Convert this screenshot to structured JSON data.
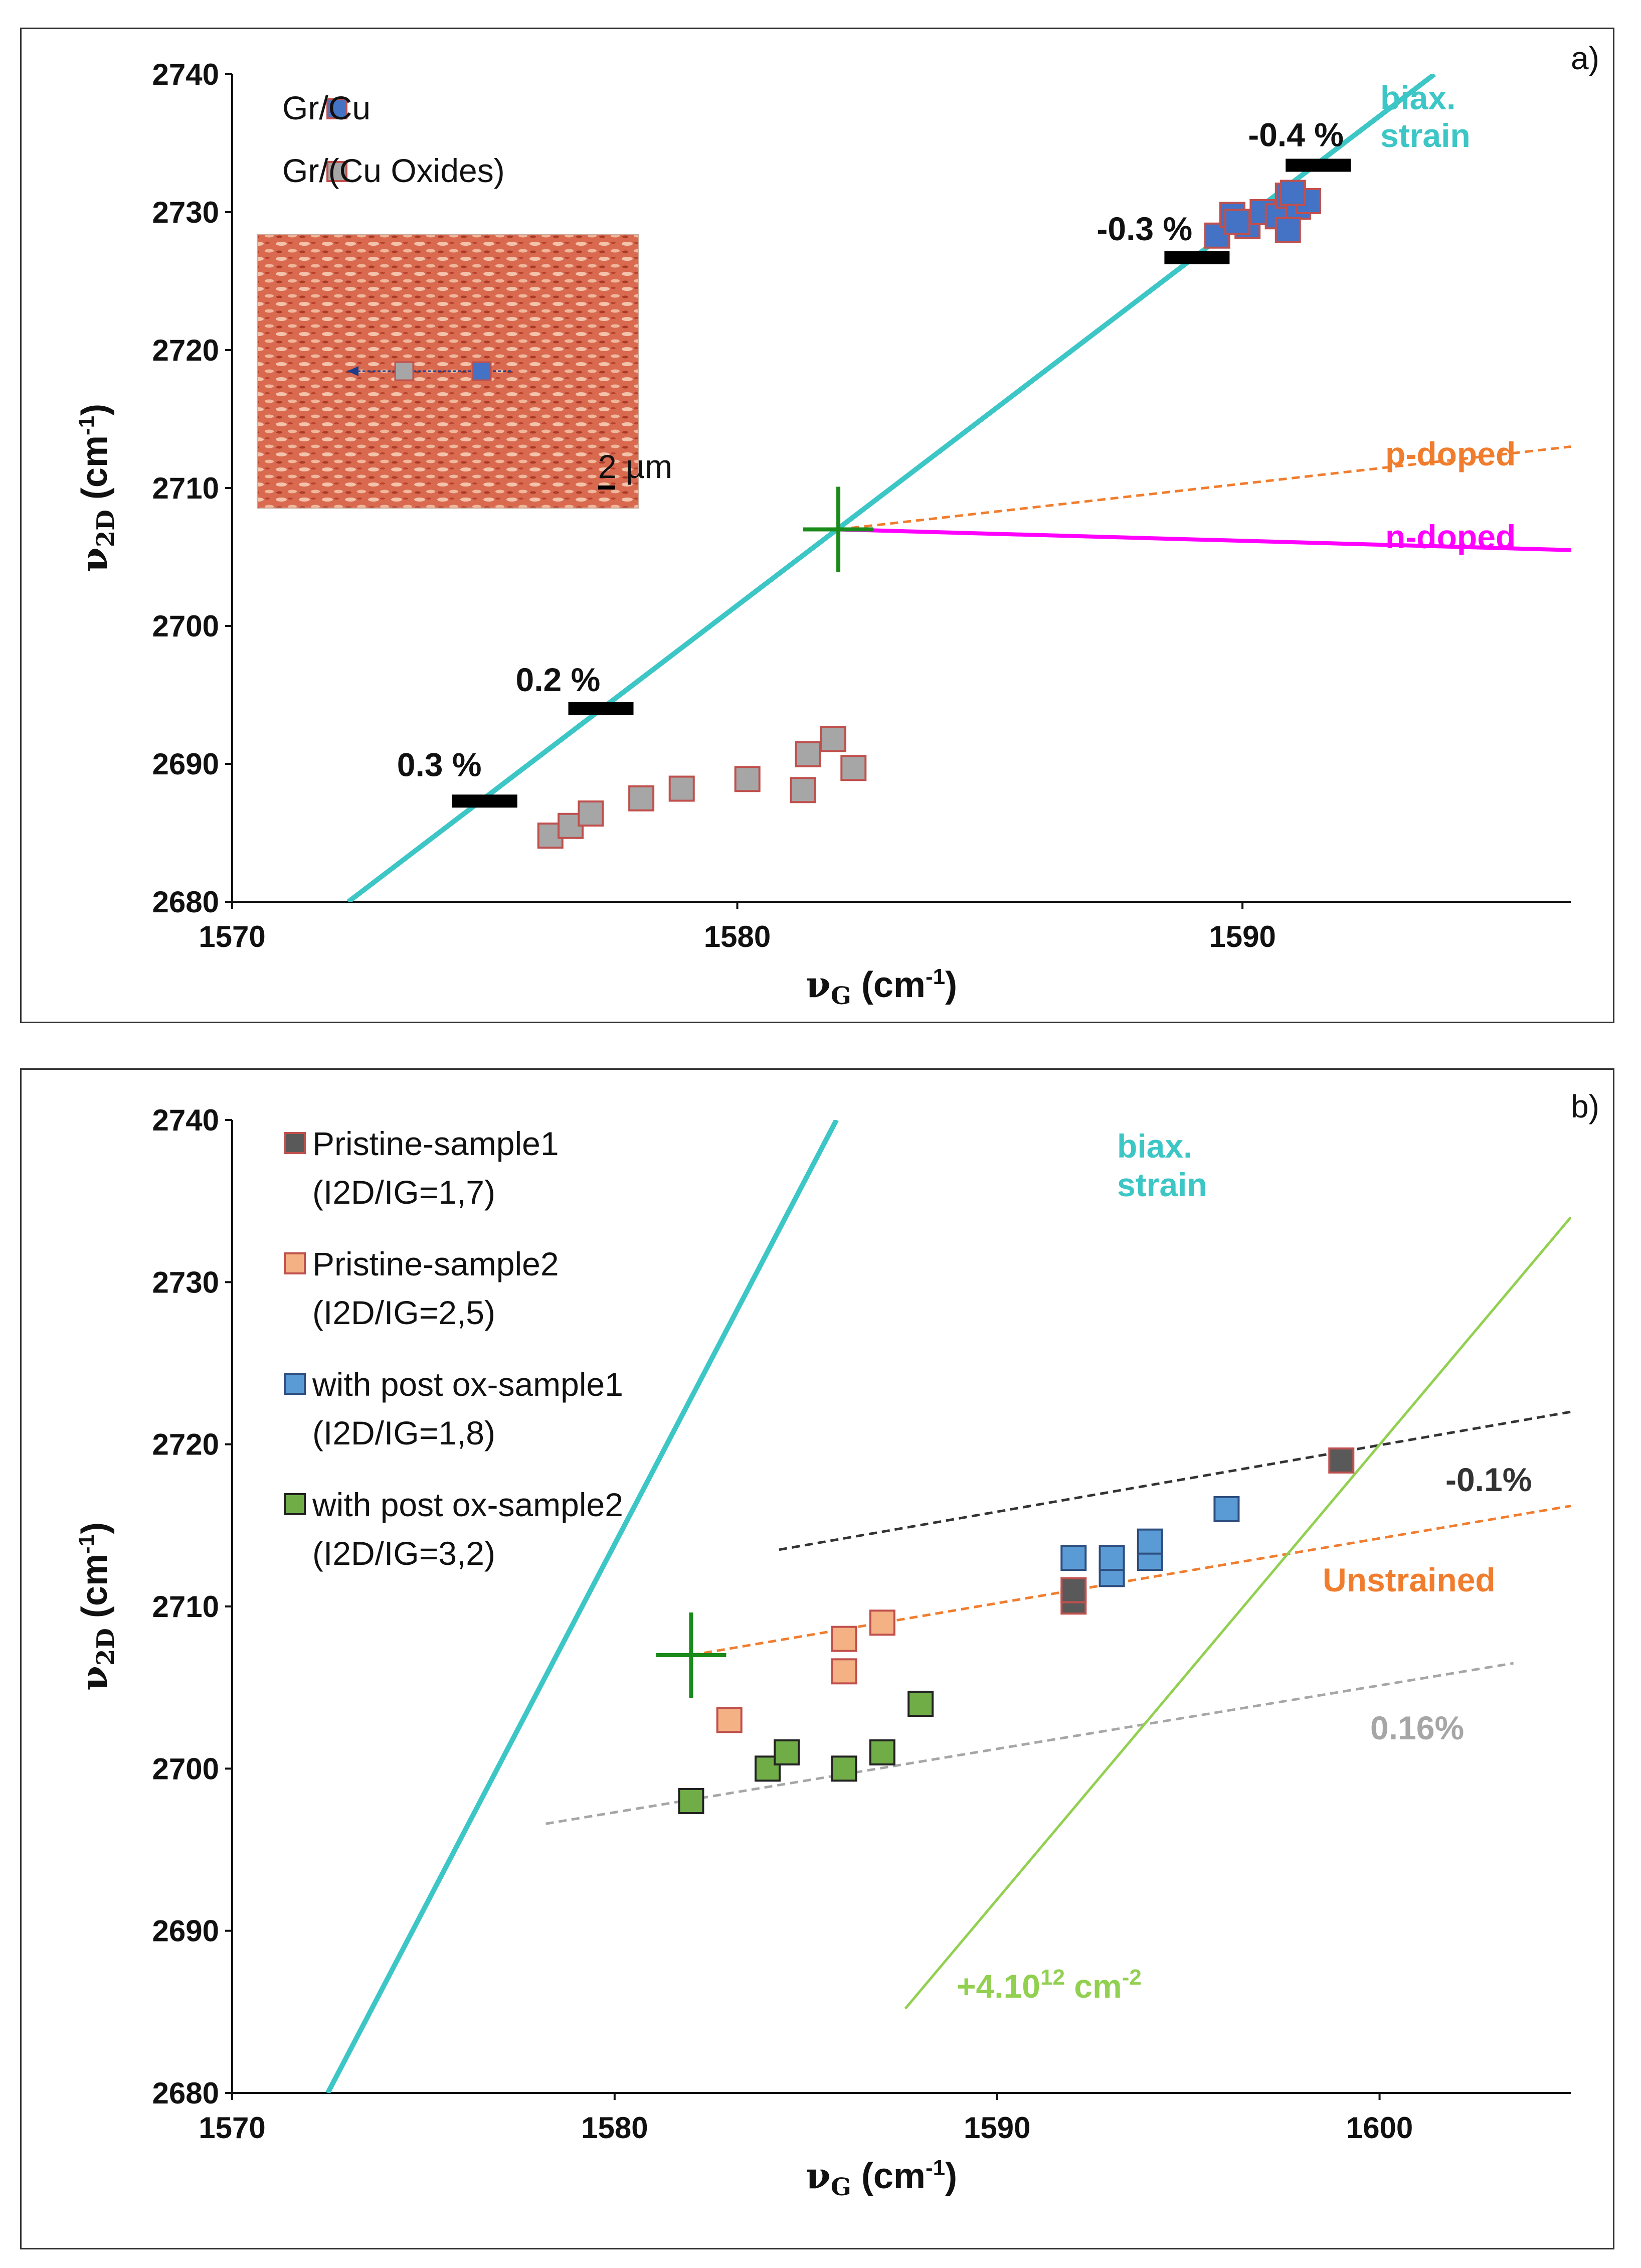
{
  "chart_data": [
    {
      "panel_label": "a)",
      "type": "scatter",
      "x_axis": {
        "label": "ν",
        "label_sub": "G",
        "unit": "(cm",
        "unit_sup": "-1",
        "unit_end": ")",
        "range": [
          1570,
          1596.5
        ],
        "ticks": [
          1570,
          1580,
          1590
        ]
      },
      "y_axis": {
        "label": "ν",
        "label_sub": "2D",
        "unit": "(cm",
        "unit_sup": "-1",
        "unit_end": ")",
        "range": [
          2680,
          2740
        ],
        "ticks": [
          2680,
          2690,
          2700,
          2710,
          2720,
          2730,
          2740
        ]
      },
      "series": [
        {
          "name": "Gr/Cu",
          "fill": "#4472c4",
          "stroke": "#c0504d",
          "points": [
            [
              1589.5,
              2728.3
            ],
            [
              1589.8,
              2729.8
            ],
            [
              1590.1,
              2729.0
            ],
            [
              1590.4,
              2730.0
            ],
            [
              1590.7,
              2729.7
            ],
            [
              1590.9,
              2731.2
            ],
            [
              1591.1,
              2730.4
            ],
            [
              1591.3,
              2730.8
            ],
            [
              1590.9,
              2728.7
            ],
            [
              1589.9,
              2729.3
            ],
            [
              1591.0,
              2731.4
            ]
          ]
        },
        {
          "name": "Gr/(Cu Oxides)",
          "fill": "#a6a6a6",
          "stroke": "#c0504d",
          "points": [
            [
              1576.3,
              2684.8
            ],
            [
              1576.7,
              2685.5
            ],
            [
              1577.1,
              2686.4
            ],
            [
              1578.1,
              2687.5
            ],
            [
              1578.9,
              2688.2
            ],
            [
              1580.2,
              2688.9
            ],
            [
              1581.3,
              2688.1
            ],
            [
              1581.4,
              2690.7
            ],
            [
              1581.9,
              2691.8
            ],
            [
              1582.3,
              2689.7
            ]
          ]
        }
      ],
      "lines": [
        {
          "name": "biax. strain",
          "color": "#3cc6c6",
          "x": [
            1572.3,
            1593.8
          ],
          "y": [
            2680,
            2740
          ]
        },
        {
          "name": "p-doped",
          "color": "#f07d2e",
          "dashed": true,
          "x": [
            1582,
            1596.5
          ],
          "y": [
            2707,
            2713
          ]
        },
        {
          "name": "n-doped",
          "color": "#ff00ff",
          "x": [
            1582,
            1596.5
          ],
          "y": [
            2707,
            2705.5
          ]
        }
      ],
      "origin": {
        "x": 1582,
        "y": 2707
      },
      "strain_markers": [
        {
          "label": "0.3 %",
          "x": 1575,
          "y": 2687.3
        },
        {
          "label": "0.2 %",
          "x": 1577.3,
          "y": 2694
        },
        {
          "label": "-0.3 %",
          "x": 1589.1,
          "y": 2726.7
        },
        {
          "label": "-0.4 %",
          "x": 1591.5,
          "y": 2733.4
        }
      ],
      "line_labels": {
        "biax": [
          "biax.",
          "strain"
        ],
        "p": "p-doped",
        "n": "n-doped"
      },
      "inset": {
        "scale_label": "2 µm"
      }
    },
    {
      "panel_label": "b)",
      "type": "scatter",
      "x_axis": {
        "label": "ν",
        "label_sub": "G",
        "unit": "(cm",
        "unit_sup": "-1",
        "unit_end": ")",
        "range": [
          1570,
          1605
        ],
        "ticks": [
          1570,
          1580,
          1590,
          1600
        ]
      },
      "y_axis": {
        "label": "ν",
        "label_sub": "2D",
        "unit": "(cm",
        "unit_sup": "-1",
        "unit_end": ")",
        "range": [
          2680,
          2740
        ],
        "ticks": [
          2680,
          2690,
          2700,
          2710,
          2720,
          2730,
          2740
        ]
      },
      "series": [
        {
          "name": "Pristine-sample1",
          "ratio": "(I2D/IG=1,7)",
          "fill": "#595959",
          "stroke": "#c0504d",
          "points": [
            [
              1592,
              2710.3
            ],
            [
              1592,
              2711
            ],
            [
              1599,
              2719
            ]
          ]
        },
        {
          "name": "Pristine-sample2",
          "ratio": "(I2D/IG=2,5)",
          "fill": "#f4b183",
          "stroke": "#c0504d",
          "points": [
            [
              1583,
              2703
            ],
            [
              1586,
              2706
            ],
            [
              1586,
              2708
            ],
            [
              1587,
              2709
            ]
          ]
        },
        {
          "name": "with post ox-sample1",
          "ratio": "(I2D/IG=1,8)",
          "fill": "#5b9bd5",
          "stroke": "#2e4f7f",
          "points": [
            [
              1592,
              2713
            ],
            [
              1593,
              2712
            ],
            [
              1593,
              2713
            ],
            [
              1594,
              2713
            ],
            [
              1594,
              2714
            ],
            [
              1596,
              2716
            ]
          ]
        },
        {
          "name": "with post ox-sample2",
          "ratio": "(I2D/IG=3,2)",
          "fill": "#70ad47",
          "stroke": "#222222",
          "points": [
            [
              1582,
              2698
            ],
            [
              1584,
              2700
            ],
            [
              1584.5,
              2701
            ],
            [
              1586,
              2700
            ],
            [
              1587,
              2701
            ],
            [
              1588,
              2704
            ]
          ]
        }
      ],
      "lines": [
        {
          "name": "biax. strain",
          "color": "#3cc6c6",
          "x": [
            1572.5,
            1585.8
          ],
          "y": [
            2680,
            2740
          ]
        },
        {
          "name": "-0.1%",
          "color": "#333333",
          "dashed": true,
          "x": [
            1584.3,
            1605
          ],
          "y": [
            2713.5,
            2722
          ]
        },
        {
          "name": "Unstrained",
          "color": "#f07d2e",
          "dashed": true,
          "x": [
            1582,
            1605
          ],
          "y": [
            2707,
            2716.2
          ]
        },
        {
          "name": "0.16%",
          "color": "#a6a6a6",
          "dashed": true,
          "x": [
            1578.2,
            1603.5
          ],
          "y": [
            2696.6,
            2706.5
          ]
        },
        {
          "name": "+4.10^12 cm^-2",
          "color": "#92d050",
          "x": [
            1587.6,
            1605
          ],
          "y": [
            2685.2,
            2734
          ]
        }
      ],
      "origin": {
        "x": 1582,
        "y": 2707
      },
      "line_labels": {
        "biax": [
          "biax.",
          "strain"
        ],
        "neg01": "-0.1%",
        "unstrained": "Unstrained",
        "p016": "0.16%",
        "doping": "+4.10",
        "doping_sup": "12",
        "doping_unit": " cm",
        "doping_unit_sup": "-2"
      }
    }
  ]
}
